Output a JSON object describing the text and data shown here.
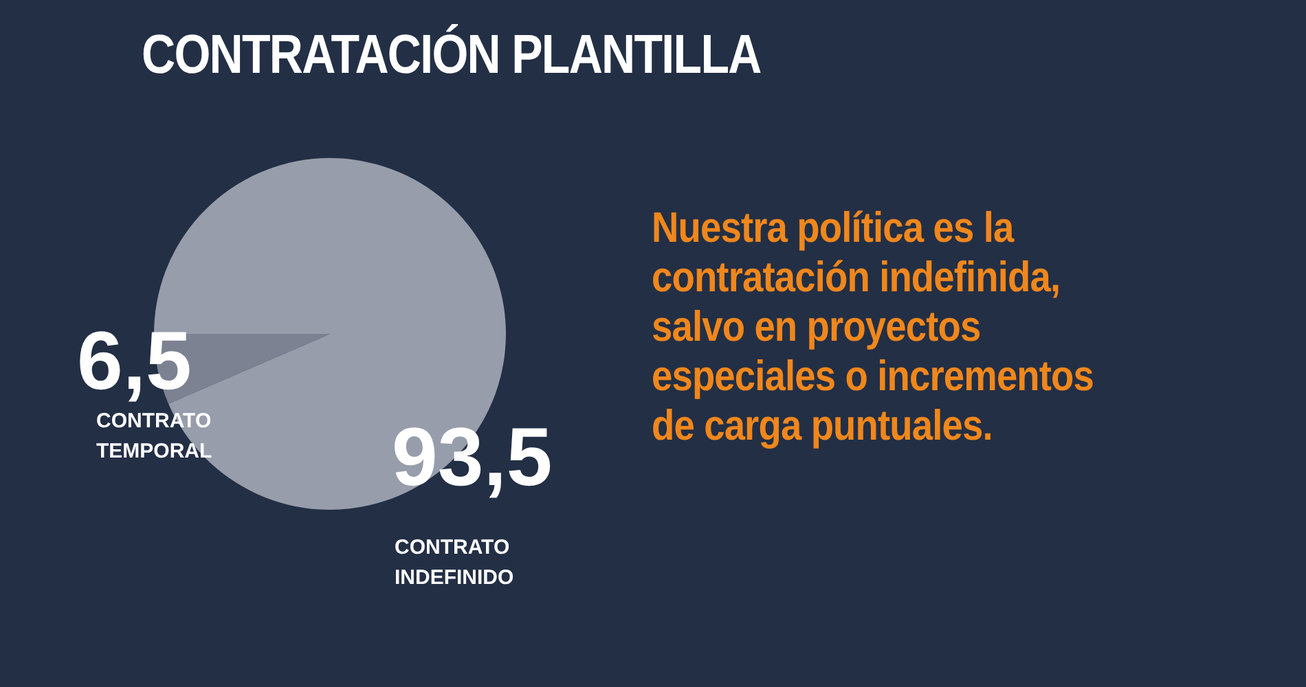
{
  "chart_data": {
    "type": "pie",
    "title": "CONTRATACIÓN PLANTILLA",
    "categories": [
      "CONTRATO INDEFINIDO",
      "CONTRATO TEMPORAL"
    ],
    "values": [
      93.5,
      6.5
    ],
    "value_labels": [
      "93,5",
      "6,5"
    ],
    "colors": [
      "#979dab",
      "#7c8291"
    ],
    "legend": false,
    "annotations": [
      "Nuestra política es la contratación indefinida, salvo en proyectos especiales o incrementos de carga puntuales."
    ]
  }
}
